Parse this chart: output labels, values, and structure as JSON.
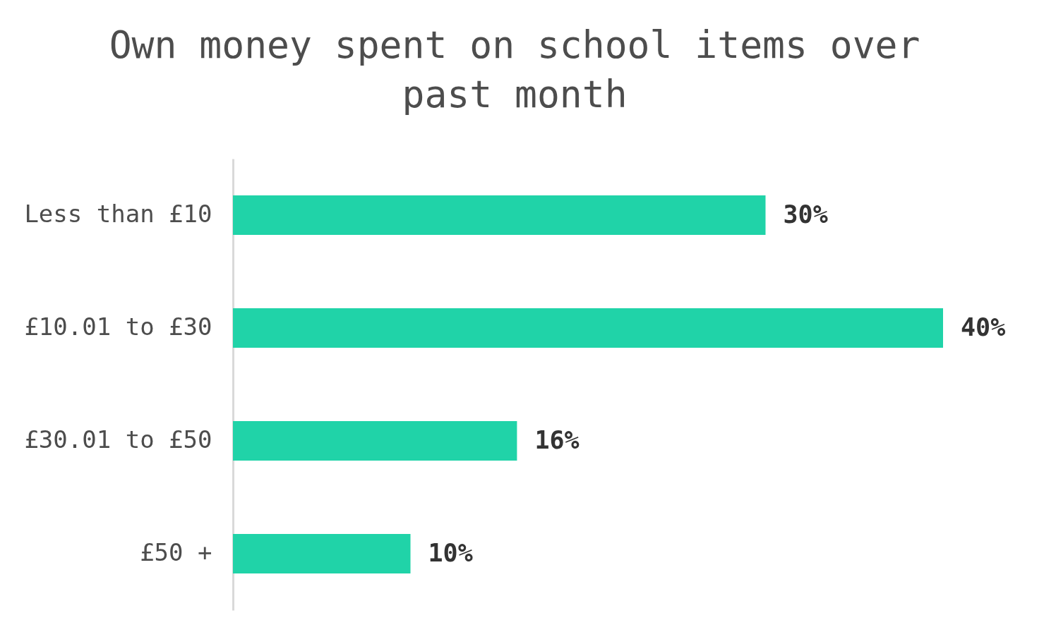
{
  "chart_data": {
    "type": "bar",
    "orientation": "horizontal",
    "title": "Own money spent on school items over past month",
    "categories": [
      "Less than £10",
      "£10.01 to £30",
      "£30.01 to £50",
      "£50 +"
    ],
    "values": [
      30,
      40,
      16,
      10
    ],
    "value_labels": [
      "30%",
      "40%",
      "16%",
      "10%"
    ],
    "color": "#20d3a8",
    "tick_labels": "y",
    "grid": false
  }
}
